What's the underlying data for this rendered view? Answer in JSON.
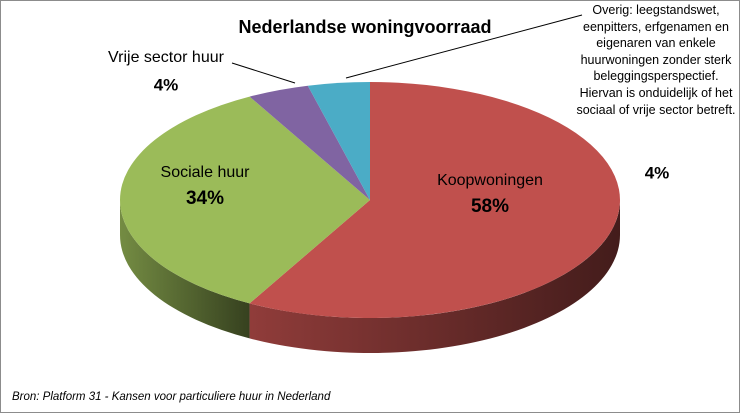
{
  "chart_data": {
    "type": "pie",
    "title": "Nederlandse woningvoorraad",
    "categories": [
      "Koopwoningen",
      "Sociale huur",
      "Vrije sector huur",
      "Overig: leegstandswet, eenpitters, erfgenamen en eigenaren van enkele huurwoningen zonder sterk beleggingsperspectief. Hiervan is onduidelijk of het sociaal of vrije sector betreft."
    ],
    "values": [
      58,
      34,
      4,
      4
    ],
    "value_labels": [
      "58%",
      "34%",
      "4%",
      "4%"
    ],
    "colors": [
      "#c0504d",
      "#9bbb59",
      "#8064a2",
      "#4bacc6"
    ],
    "source": "Bron: Platform 31 - Kansen voor particuliere huur in Nederland"
  }
}
